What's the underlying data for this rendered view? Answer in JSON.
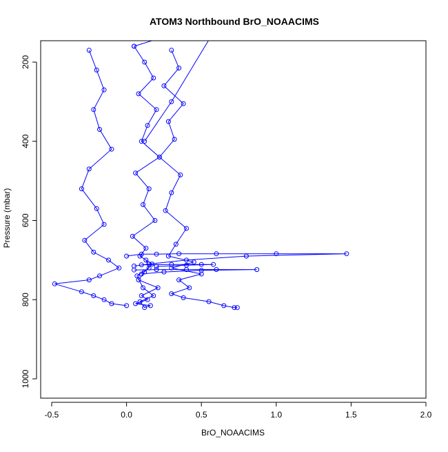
{
  "chart_data": {
    "type": "line",
    "title": "ATOM3 Northbound BrO_NOAACIMS",
    "xlabel": "BrO_NOAACIMS",
    "ylabel": "Pressure (mbar)",
    "xlim": [
      -0.5,
      2.0
    ],
    "ylim": [
      1040,
      150
    ],
    "y_inverted": true,
    "x_ticks": [
      "-0.5",
      "0.0",
      "0.5",
      "1.0",
      "1.5",
      "2.0"
    ],
    "x_tick_values": [
      -0.5,
      0.0,
      0.5,
      1.0,
      1.5,
      2.0
    ],
    "y_ticks": [
      "200",
      "400",
      "600",
      "800",
      "1000"
    ],
    "y_tick_values": [
      200,
      400,
      600,
      800,
      1000
    ],
    "grid": false,
    "marker": "open-circle",
    "color": "#0000ff",
    "series": [
      {
        "x": [
          0.05,
          0.12,
          0.18,
          0.08,
          0.2,
          0.14,
          0.1,
          0.22,
          0.06,
          0.15,
          0.11,
          0.19,
          0.04,
          0.13,
          0.09,
          0.17,
          0.12,
          0.08,
          0.21,
          0.1,
          0.14,
          0.06,
          0.16,
          0.12,
          0.09,
          0.18,
          0.11,
          0.07,
          0.15,
          0.13
        ],
        "y": [
          160,
          200,
          240,
          280,
          320,
          360,
          400,
          440,
          480,
          520,
          560,
          600,
          640,
          670,
          690,
          710,
          730,
          750,
          770,
          790,
          800,
          810,
          815,
          820,
          805,
          790,
          770,
          740,
          720,
          700
        ]
      },
      {
        "x": [
          -0.25,
          -0.2,
          -0.15,
          -0.22,
          -0.18,
          -0.1,
          -0.25,
          -0.3,
          -0.2,
          -0.15,
          -0.28,
          -0.22,
          -0.12,
          -0.05,
          -0.18,
          -0.25,
          -0.48,
          -0.3,
          -0.22,
          -0.15,
          -0.1,
          0.0
        ],
        "y": [
          170,
          220,
          270,
          320,
          370,
          420,
          470,
          520,
          570,
          610,
          650,
          680,
          700,
          720,
          740,
          750,
          760,
          780,
          790,
          800,
          810,
          815
        ]
      },
      {
        "x": [
          0.3,
          0.35,
          0.25,
          0.38,
          0.28,
          0.32,
          0.22,
          0.36,
          0.3,
          0.26,
          0.4,
          0.33,
          0.28,
          0.45,
          0.3,
          0.5,
          0.35,
          0.42,
          0.3,
          0.38,
          0.55,
          0.65,
          0.72,
          0.74
        ],
        "y": [
          170,
          215,
          260,
          305,
          350,
          395,
          440,
          485,
          530,
          575,
          620,
          660,
          690,
          705,
          720,
          735,
          750,
          770,
          785,
          795,
          805,
          815,
          820,
          820
        ]
      },
      {
        "x": [
          0.0,
          0.1,
          0.2,
          0.35,
          0.6,
          1.0,
          1.47,
          0.8,
          0.4,
          0.15,
          0.05
        ],
        "y": [
          690,
          685,
          685,
          684,
          684,
          684,
          684,
          690,
          700,
          710,
          715
        ]
      },
      {
        "x": [
          0.05,
          0.2,
          0.4,
          0.6,
          0.87,
          0.5,
          0.25,
          0.1
        ],
        "y": [
          725,
          724,
          724,
          724,
          724,
          726,
          730,
          735
        ]
      },
      {
        "x": [
          0.1,
          0.3,
          0.5,
          0.58,
          0.4,
          0.2
        ],
        "y": [
          712,
          711,
          711,
          711,
          713,
          716
        ]
      },
      {
        "x": [
          0.05,
          0.22,
          0.38,
          0.62,
          0.3,
          0.12
        ],
        "y": [
          160,
          140,
          120,
          100,
          300,
          400
        ]
      }
    ]
  }
}
